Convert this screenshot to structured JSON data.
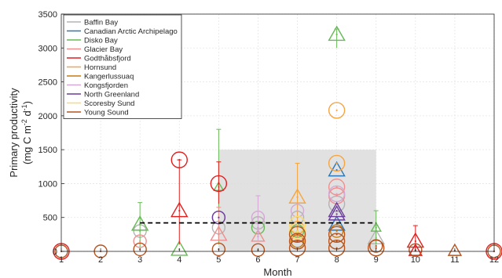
{
  "chart_data": {
    "type": "scatter",
    "xlabel": "Month",
    "ylabel": {
      "line1": "Primary productivity",
      "line2_prefix": "(mg C m",
      "line2_sup1": "-2",
      "line2_mid": " d",
      "line2_sup2": "-1",
      "line2_suffix": ")"
    },
    "xlim": [
      1,
      12
    ],
    "ylim": [
      0,
      3500
    ],
    "xticks": [
      "1",
      "2",
      "3",
      "4",
      "5",
      "6",
      "7",
      "8",
      "9",
      "10",
      "11",
      "12"
    ],
    "yticks": [
      "0",
      "500",
      "1000",
      "1500",
      "2000",
      "2500",
      "3000",
      "3500"
    ],
    "grid": true,
    "legend_position": "top-left",
    "shaded_region": {
      "x": [
        5,
        9
      ],
      "y": [
        0,
        1500
      ],
      "color": "#dcdcdc"
    },
    "reference_line": {
      "x": [
        3,
        9
      ],
      "y": 420,
      "style": "dashed"
    },
    "series": [
      {
        "name": "Baffin Bay",
        "color": "#b3b3b3",
        "points": [
          {
            "x": 3,
            "y": 300,
            "marker": "circle",
            "size": "m"
          },
          {
            "x": 5,
            "y": 350,
            "marker": "circle",
            "size": "m"
          },
          {
            "x": 6,
            "y": 420,
            "marker": "circle",
            "size": "m"
          },
          {
            "x": 7,
            "y": 500,
            "marker": "circle",
            "size": "m"
          },
          {
            "x": 8,
            "y": 700,
            "marker": "circle",
            "size": "l"
          },
          {
            "x": 9,
            "y": 200,
            "marker": "triangle",
            "size": "l",
            "err": [
              30,
              380
            ]
          }
        ]
      },
      {
        "name": "Canadian Arctic Archipelago",
        "color": "#2a78b8",
        "points": [
          {
            "x": 8,
            "y": 1200,
            "marker": "triangle",
            "size": "l"
          },
          {
            "x": 8,
            "y": 400,
            "marker": "triangle",
            "size": "l"
          }
        ]
      },
      {
        "name": "Disko Bay",
        "color": "#66bb55",
        "points": [
          {
            "x": 3,
            "y": 400,
            "marker": "triangle",
            "size": "l",
            "err": [
              50,
              720
            ]
          },
          {
            "x": 4,
            "y": 30,
            "marker": "triangle",
            "size": "l"
          },
          {
            "x": 5,
            "y": 950,
            "marker": "triangle",
            "size": "s",
            "err": [
              100,
              1800
            ]
          },
          {
            "x": 6,
            "y": 350,
            "marker": "circle",
            "size": "m"
          },
          {
            "x": 7,
            "y": 300,
            "marker": "circle",
            "size": "m"
          },
          {
            "x": 8,
            "y": 3200,
            "marker": "triangle",
            "size": "l",
            "err": [
              3000,
              3280
            ]
          },
          {
            "x": 9,
            "y": 350,
            "marker": "triangle",
            "size": "s",
            "err": [
              100,
              600
            ]
          }
        ]
      },
      {
        "name": "Glacier Bay",
        "color": "#ef8f8f",
        "points": [
          {
            "x": 3,
            "y": 150,
            "marker": "circle",
            "size": "m"
          },
          {
            "x": 5,
            "y": 250,
            "marker": "triangle",
            "size": "l",
            "err": [
              150,
              650
            ]
          },
          {
            "x": 6,
            "y": 220,
            "marker": "triangle",
            "size": "m"
          },
          {
            "x": 7,
            "y": 220,
            "marker": "triangle",
            "size": "m"
          },
          {
            "x": 8,
            "y": 950,
            "marker": "circle",
            "size": "l"
          },
          {
            "x": 8,
            "y": 820,
            "marker": "circle",
            "size": "l"
          }
        ]
      },
      {
        "name": "Godthåbsfjord",
        "color": "#e01f1f",
        "points": [
          {
            "x": 1,
            "y": 0,
            "marker": "circle",
            "size": "l"
          },
          {
            "x": 4,
            "y": 1350,
            "marker": "circle",
            "size": "l"
          },
          {
            "x": 4,
            "y": 600,
            "marker": "triangle",
            "size": "l",
            "err": [
              100,
              1350
            ]
          },
          {
            "x": 5,
            "y": 1000,
            "marker": "circle",
            "size": "l",
            "err": [
              700,
              1320
            ]
          },
          {
            "x": 10,
            "y": 150,
            "marker": "triangle",
            "size": "l",
            "err": [
              40,
              380
            ]
          },
          {
            "x": 10,
            "y": 10,
            "marker": "triangle",
            "size": "m"
          },
          {
            "x": 12,
            "y": 0,
            "marker": "circle",
            "size": "l"
          }
        ]
      },
      {
        "name": "Hornsund",
        "color": "#f5a542",
        "points": [
          {
            "x": 7,
            "y": 800,
            "marker": "triangle",
            "size": "l",
            "err": [
              300,
              1300
            ]
          },
          {
            "x": 8,
            "y": 2080,
            "marker": "circle",
            "size": "l"
          },
          {
            "x": 8,
            "y": 1300,
            "marker": "circle",
            "size": "l"
          },
          {
            "x": 7,
            "y": 350,
            "marker": "circle",
            "size": "m"
          }
        ]
      },
      {
        "name": "Kangerlussuaq",
        "color": "#c57a10",
        "points": [
          {
            "x": 7,
            "y": 150,
            "marker": "circle",
            "size": "m"
          },
          {
            "x": 8,
            "y": 300,
            "marker": "circle",
            "size": "m"
          }
        ]
      },
      {
        "name": "Kongsfjorden",
        "color": "#d4a8d4",
        "points": [
          {
            "x": 5,
            "y": 500,
            "marker": "circle",
            "size": "m"
          },
          {
            "x": 6,
            "y": 500,
            "marker": "circle",
            "size": "m",
            "err": [
              150,
              820
            ]
          },
          {
            "x": 7,
            "y": 600,
            "marker": "circle",
            "size": "m"
          },
          {
            "x": 8,
            "y": 850,
            "marker": "circle",
            "size": "l"
          }
        ]
      },
      {
        "name": "North Greenland",
        "color": "#6a3d9a",
        "points": [
          {
            "x": 5,
            "y": 500,
            "marker": "circle",
            "size": "m"
          },
          {
            "x": 8,
            "y": 600,
            "marker": "triangle",
            "size": "l"
          },
          {
            "x": 8,
            "y": 550,
            "marker": "triangle",
            "size": "l"
          }
        ]
      },
      {
        "name": "Scoresby Sund",
        "color": "#f7dc6f",
        "points": [
          {
            "x": 7,
            "y": 400,
            "marker": "circle",
            "size": "l"
          },
          {
            "x": 7,
            "y": 300,
            "marker": "circle",
            "size": "l"
          }
        ]
      },
      {
        "name": "Young Sound",
        "color": "#b5541e",
        "points": [
          {
            "x": 1,
            "y": 0,
            "marker": "circle",
            "size": "m"
          },
          {
            "x": 2,
            "y": 0,
            "marker": "circle",
            "size": "m"
          },
          {
            "x": 3,
            "y": 30,
            "marker": "circle",
            "size": "m"
          },
          {
            "x": 5,
            "y": 30,
            "marker": "circle",
            "size": "m"
          },
          {
            "x": 6,
            "y": 20,
            "marker": "circle",
            "size": "m"
          },
          {
            "x": 7,
            "y": 50,
            "marker": "circle",
            "size": "l"
          },
          {
            "x": 7,
            "y": 150,
            "marker": "circle",
            "size": "l"
          },
          {
            "x": 7,
            "y": 250,
            "marker": "circle",
            "size": "l"
          },
          {
            "x": 8,
            "y": 50,
            "marker": "circle",
            "size": "l"
          },
          {
            "x": 8,
            "y": 150,
            "marker": "circle",
            "size": "l"
          },
          {
            "x": 8,
            "y": 250,
            "marker": "circle",
            "size": "l"
          },
          {
            "x": 9,
            "y": 50,
            "marker": "circle",
            "size": "l"
          },
          {
            "x": 9,
            "y": 80,
            "marker": "circle",
            "size": "m"
          },
          {
            "x": 10,
            "y": 20,
            "marker": "circle",
            "size": "m"
          },
          {
            "x": 11,
            "y": 10,
            "marker": "triangle",
            "size": "m"
          },
          {
            "x": 12,
            "y": 0,
            "marker": "circle",
            "size": "m"
          }
        ]
      }
    ]
  }
}
